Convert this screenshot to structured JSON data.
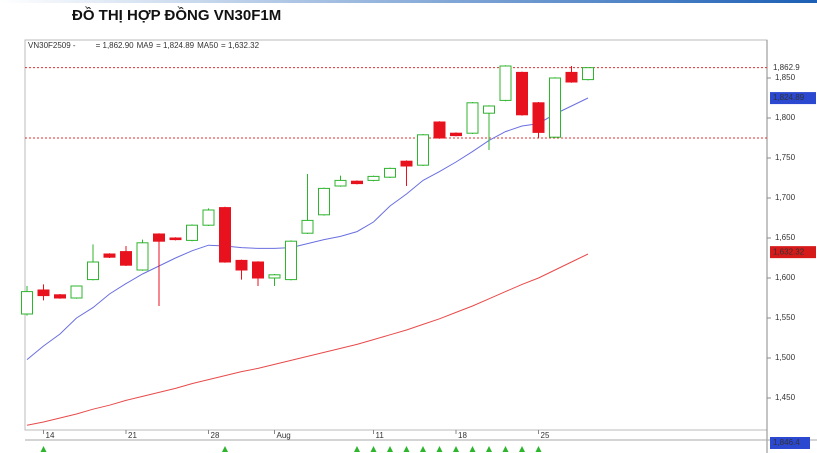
{
  "chart_data": {
    "type": "candlestick",
    "title": "ĐỒ THỊ HỢP ĐỒNG VN30F1M",
    "legend": [
      {
        "text": "VN30F2509 -",
        "color": "#333333"
      },
      {
        "text": "= 1,862.90",
        "color": "#333333"
      },
      {
        "text": "MA9",
        "color": "#3b4fd8"
      },
      {
        "text": "= 1,824.89",
        "color": "#333333"
      },
      {
        "text": "MA50",
        "color": "#e03030"
      },
      {
        "text": "= 1,632.32",
        "color": "#333333"
      }
    ],
    "categories": [
      null,
      "14",
      null,
      null,
      null,
      null,
      "21",
      null,
      null,
      null,
      null,
      "28",
      null,
      null,
      null,
      "Aug",
      null,
      null,
      null,
      null,
      null,
      "11",
      null,
      null,
      null,
      null,
      "18",
      null,
      null,
      null,
      null,
      "25",
      null,
      null,
      null
    ],
    "open": [
      1555,
      1585,
      1579,
      1575,
      1598,
      1630,
      1633,
      1610,
      1655,
      1650,
      1647,
      1666,
      1688,
      1622,
      1620,
      1600,
      1598,
      1656,
      1679,
      1715,
      1721,
      1722,
      1726,
      1746,
      1741,
      1795,
      1781,
      1781,
      1806,
      1822,
      1857,
      1819,
      1776,
      1857,
      1848
    ],
    "high": [
      1590,
      1592,
      1580,
      1590,
      1642,
      1631,
      1640,
      1648,
      1656,
      1651,
      1667,
      1687,
      1689,
      1623,
      1621,
      1605,
      1647,
      1730,
      1713,
      1728,
      1722,
      1728,
      1738,
      1747,
      1780,
      1796,
      1782,
      1820,
      1816,
      1866,
      1858,
      1820,
      1851,
      1865,
      1863
    ],
    "low": [
      1553,
      1572,
      1574,
      1574,
      1597,
      1625,
      1615,
      1609,
      1565,
      1647,
      1646,
      1665,
      1619,
      1598,
      1590,
      1590,
      1597,
      1655,
      1678,
      1714,
      1717,
      1721,
      1725,
      1715,
      1740,
      1774,
      1777,
      1780,
      1760,
      1821,
      1803,
      1775,
      1775,
      1844,
      1847
    ],
    "close": [
      1583,
      1578,
      1575,
      1590,
      1620,
      1626,
      1616,
      1644,
      1646,
      1648,
      1666,
      1685,
      1620,
      1610,
      1600,
      1604,
      1646,
      1672,
      1712,
      1722,
      1718,
      1727,
      1737,
      1740,
      1779,
      1775,
      1778,
      1819,
      1815,
      1865,
      1804,
      1782,
      1850,
      1845,
      1862.9
    ],
    "up_color": "#2db52d",
    "down_color": "#e8121e",
    "series": [
      {
        "name": "MA9",
        "color": "#6a6fe0",
        "values": [
          1498,
          1515,
          1530,
          1550,
          1563,
          1580,
          1593,
          1605,
          1615,
          1625,
          1634,
          1641,
          1640,
          1638,
          1637,
          1637,
          1638,
          1643,
          1648,
          1652,
          1658,
          1670,
          1690,
          1705,
          1722,
          1733,
          1745,
          1758,
          1772,
          1783,
          1790,
          1793,
          1805,
          1815,
          1825
        ]
      },
      {
        "name": "MA50",
        "color": "#e84a4a",
        "values": [
          1416,
          1420,
          1425,
          1430,
          1436,
          1441,
          1447,
          1452,
          1457,
          1462,
          1468,
          1473,
          1478,
          1483,
          1487,
          1492,
          1497,
          1502,
          1507,
          1512,
          1517,
          1523,
          1529,
          1535,
          1542,
          1549,
          1557,
          1565,
          1574,
          1583,
          1592,
          1600,
          1610,
          1620,
          1630
        ]
      }
    ],
    "hlines": [
      1862.9,
      1775
    ],
    "ylim": [
      1410,
      1897.5
    ],
    "yticks": [
      {
        "value": 1450,
        "label": "1,450"
      },
      {
        "value": 1500,
        "label": "1,500"
      },
      {
        "value": 1550,
        "label": "1,550"
      },
      {
        "value": 1600,
        "label": "1,600"
      },
      {
        "value": 1650,
        "label": "1,650"
      },
      {
        "value": 1700,
        "label": "1,700"
      },
      {
        "value": 1750,
        "label": "1,750"
      },
      {
        "value": 1800,
        "label": "1,800"
      },
      {
        "value": 1850,
        "label": "1,850"
      }
    ],
    "badges": [
      {
        "value": 1862.9,
        "label": "1,862.9",
        "color": null
      },
      {
        "value": 1824.89,
        "label": "1,824.89",
        "color": "#2a48d0"
      },
      {
        "value": 1632.32,
        "label": "1,632.32",
        "color": "#d61a1a"
      }
    ],
    "lower_badge": "1,846.4"
  }
}
